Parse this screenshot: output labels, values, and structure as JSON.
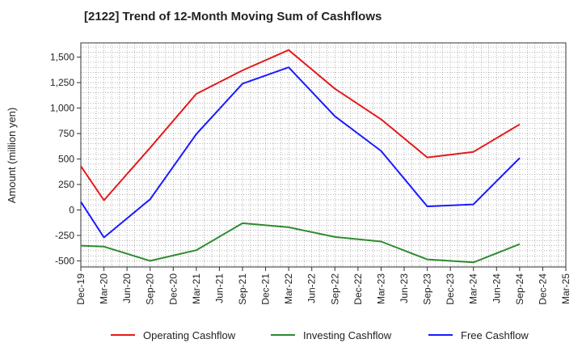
{
  "chart_data": {
    "type": "line",
    "title": "[2122]  Trend of 12-Month Moving Sum of Cashflows",
    "xlabel": "",
    "ylabel": "Amount (million yen)",
    "categories": [
      "Dec-19",
      "Mar-20",
      "Jun-20",
      "Sep-20",
      "Dec-20",
      "Mar-21",
      "Jun-21",
      "Sep-21",
      "Dec-21",
      "Mar-22",
      "Jun-22",
      "Sep-22",
      "Dec-22",
      "Mar-23",
      "Jun-23",
      "Sep-23",
      "Dec-23",
      "Mar-24",
      "Jun-24",
      "Sep-24",
      "Dec-24",
      "Mar-25"
    ],
    "ylim": [
      -560,
      1640
    ],
    "yticks": [
      -500,
      -250,
      0,
      250,
      500,
      750,
      1000,
      1250,
      1500
    ],
    "ytick_labels": [
      "-500",
      "-250",
      "0",
      "250",
      "500",
      "750",
      "1,000",
      "1,250",
      "1,500"
    ],
    "grid": true,
    "legend_position": "bottom",
    "series": [
      {
        "name": "Operating Cashflow",
        "color": "#e31a1c",
        "values": [
          430,
          95,
          null,
          610,
          null,
          1140,
          null,
          1370,
          null,
          1570,
          null,
          1190,
          null,
          890,
          null,
          515,
          null,
          570,
          null,
          840,
          null,
          null
        ]
      },
      {
        "name": "Investing Cashflow",
        "color": "#2e8b2e",
        "values": [
          -350,
          -360,
          null,
          -500,
          null,
          -395,
          null,
          -130,
          null,
          -170,
          null,
          -265,
          null,
          -310,
          null,
          -485,
          null,
          -515,
          null,
          -335,
          null,
          null
        ]
      },
      {
        "name": "Free Cashflow",
        "color": "#1a1aff",
        "values": [
          80,
          -270,
          null,
          105,
          null,
          745,
          null,
          1240,
          null,
          1400,
          null,
          920,
          null,
          580,
          null,
          35,
          null,
          55,
          null,
          510,
          null,
          null
        ]
      }
    ]
  }
}
